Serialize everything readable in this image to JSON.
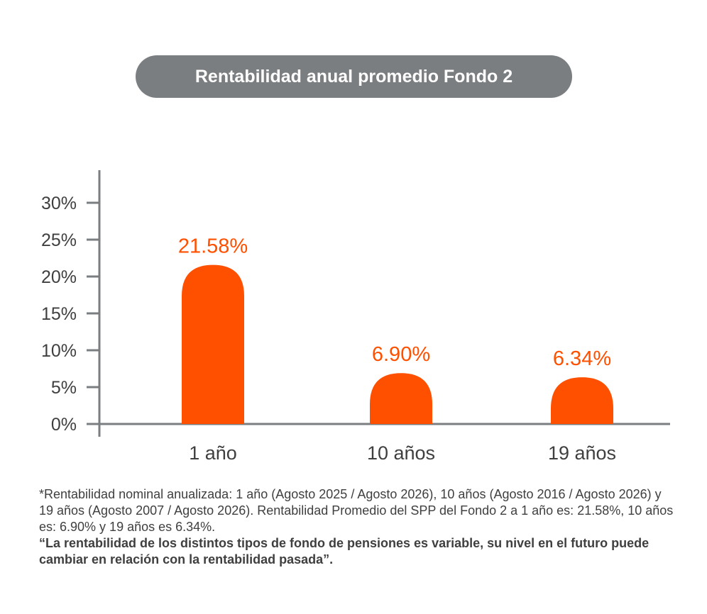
{
  "title": "Rentabilidad anual promedio Fondo 2",
  "colors": {
    "bar": "#ff5000",
    "axis": "#7b7e80",
    "text": "#3f3f3f",
    "title_bg": "#7b7e80"
  },
  "chart_data": {
    "type": "bar",
    "categories": [
      "1 año",
      "10 años",
      "19 años"
    ],
    "values": [
      21.58,
      6.9,
      6.34
    ],
    "value_labels": [
      "21.58%",
      "6.90%",
      "6.34%"
    ],
    "yticks": [
      0,
      5,
      10,
      15,
      20,
      25,
      30
    ],
    "ytick_labels": [
      "0%",
      "5%",
      "10%",
      "15%",
      "20%",
      "25%",
      "30%"
    ],
    "ylim": [
      0,
      30
    ],
    "grid": false,
    "title": "Rentabilidad anual promedio Fondo 2",
    "xlabel": "",
    "ylabel": ""
  },
  "footnote": {
    "text": "*Rentabilidad nominal anualizada: 1 año (Agosto 2025 / Agosto 2026), 10 años (Agosto 2016 / Agosto 2026) y 19 años (Agosto 2007 / Agosto 2026). Rentabilidad Promedio del SPP del Fondo 2 a 1 año es: 21.58%, 10 años es: 6.90% y 19 años es 6.34%.",
    "quote": "“La rentabilidad de los distintos tipos de fondo de pensiones es variable, su nivel en el futuro puede cambiar en relación con la rentabilidad pasada”."
  }
}
